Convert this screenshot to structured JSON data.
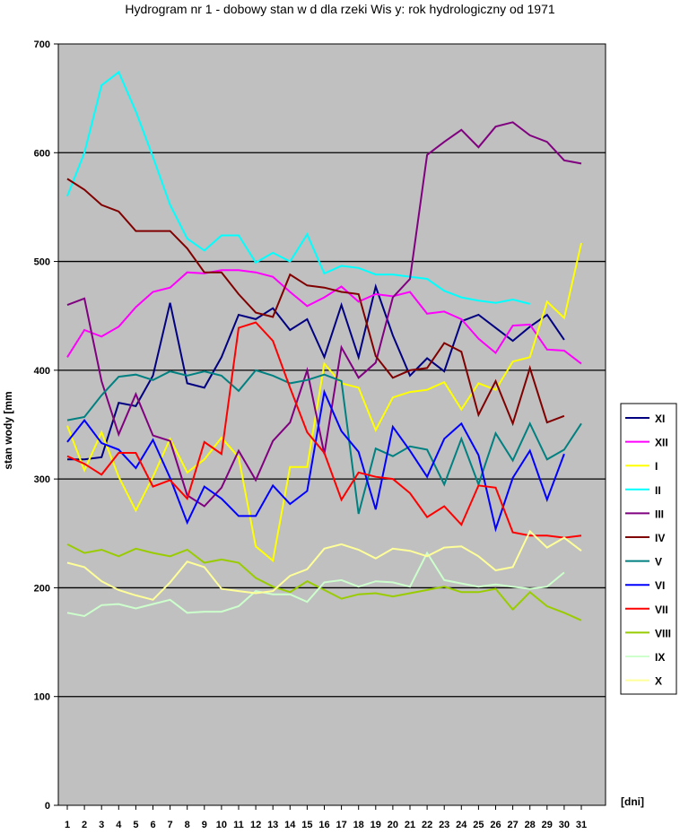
{
  "chart_data": {
    "type": "line",
    "title": "Hydrogram nr 1 - dobowy stan w d dla rzeki Wis y: rok hydrologiczny od 1971",
    "xlabel": "[dni]",
    "ylabel": "stan wody [mm",
    "ylim": [
      0,
      700
    ],
    "yticks": [
      "0",
      "100",
      "200",
      "300",
      "400",
      "500",
      "600",
      "700"
    ],
    "xticks": [
      "1",
      "2",
      "3",
      "4",
      "5",
      "6",
      "7",
      "8",
      "9",
      "10",
      "11",
      "12",
      "13",
      "14",
      "15",
      "16",
      "17",
      "18",
      "19",
      "20",
      "21",
      "22",
      "23",
      "24",
      "25",
      "26",
      "27",
      "28",
      "29",
      "30",
      "31"
    ],
    "grid": "horizontal",
    "legend_position": "right",
    "background": "#c0c0c0",
    "series": [
      {
        "name": "XI",
        "color": "#000080",
        "values": [
          318,
          318,
          320,
          370,
          367,
          395,
          462,
          388,
          384,
          412,
          451,
          447,
          457,
          437,
          447,
          412,
          460,
          412,
          477,
          432,
          395,
          411,
          399,
          445,
          451,
          439,
          427,
          440,
          451,
          428
        ]
      },
      {
        "name": "XII",
        "color": "#ff00ff",
        "values": [
          412,
          437,
          431,
          440,
          458,
          472,
          476,
          490,
          489,
          492,
          492,
          490,
          486,
          472,
          459,
          467,
          477,
          463,
          470,
          468,
          472,
          452,
          454,
          447,
          429,
          416,
          441,
          442,
          419,
          418,
          406
        ]
      },
      {
        "name": "I",
        "color": "#ffff00",
        "values": [
          349,
          308,
          343,
          302,
          271,
          302,
          337,
          306,
          318,
          338,
          320,
          238,
          225,
          311,
          311,
          406,
          388,
          384,
          345,
          375,
          380,
          382,
          389,
          364,
          388,
          382,
          408,
          412,
          463,
          448,
          517
        ]
      },
      {
        "name": "II",
        "color": "#00ffff",
        "values": [
          560,
          600,
          662,
          674,
          638,
          596,
          552,
          521,
          510,
          524,
          524,
          499,
          508,
          500,
          525,
          489,
          496,
          494,
          488,
          488,
          486,
          484,
          473,
          467,
          464,
          462,
          465,
          461
        ]
      },
      {
        "name": "III",
        "color": "#800080",
        "values": [
          460,
          466,
          390,
          341,
          378,
          340,
          335,
          285,
          275,
          292,
          326,
          299,
          335,
          352,
          400,
          323,
          421,
          393,
          407,
          467,
          484,
          598,
          610,
          621,
          605,
          624,
          628,
          616,
          610,
          593,
          590
        ]
      },
      {
        "name": "IV",
        "color": "#800000",
        "values": [
          576,
          566,
          552,
          546,
          528,
          528,
          528,
          512,
          490,
          490,
          470,
          453,
          449,
          488,
          478,
          476,
          472,
          470,
          413,
          393,
          400,
          402,
          425,
          417,
          359,
          390,
          351,
          402,
          352,
          358
        ]
      },
      {
        "name": "V",
        "color": "#008080",
        "values": [
          354,
          357,
          377,
          394,
          396,
          391,
          399,
          395,
          399,
          395,
          381,
          400,
          395,
          388,
          391,
          396,
          390,
          268,
          328,
          321,
          330,
          327,
          295,
          337,
          295,
          342,
          317,
          351,
          318,
          327,
          351
        ]
      },
      {
        "name": "VI",
        "color": "#0000ff",
        "values": [
          334,
          354,
          333,
          327,
          310,
          336,
          301,
          260,
          293,
          282,
          266,
          266,
          294,
          277,
          289,
          380,
          344,
          325,
          272,
          348,
          326,
          302,
          337,
          351,
          322,
          254,
          301,
          326,
          281,
          323
        ]
      },
      {
        "name": "VII",
        "color": "#ff0000",
        "values": [
          321,
          314,
          304,
          324,
          324,
          293,
          299,
          282,
          334,
          323,
          439,
          444,
          427,
          384,
          343,
          324,
          281,
          306,
          302,
          300,
          287,
          265,
          275,
          258,
          294,
          292,
          251,
          248,
          248,
          246,
          248
        ]
      },
      {
        "name": "VIII",
        "color": "#99cc00",
        "values": [
          240,
          232,
          235,
          229,
          236,
          232,
          229,
          235,
          223,
          226,
          223,
          209,
          201,
          196,
          206,
          198,
          190,
          194,
          195,
          192,
          195,
          198,
          201,
          196,
          196,
          199,
          180,
          196,
          183,
          177,
          170
        ]
      },
      {
        "name": "IX",
        "color": "#ccffcc",
        "values": [
          177,
          174,
          184,
          185,
          181,
          185,
          189,
          177,
          178,
          178,
          183,
          197,
          194,
          194,
          187,
          205,
          207,
          201,
          206,
          205,
          201,
          232,
          207,
          204,
          201,
          203,
          201,
          199,
          201,
          214
        ]
      },
      {
        "name": "X",
        "color": "#ffff99",
        "values": [
          223,
          219,
          206,
          198,
          193,
          189,
          205,
          224,
          219,
          199,
          197,
          195,
          197,
          211,
          217,
          236,
          240,
          235,
          227,
          236,
          234,
          229,
          237,
          238,
          229,
          216,
          219,
          252,
          237,
          246,
          234
        ]
      }
    ]
  }
}
